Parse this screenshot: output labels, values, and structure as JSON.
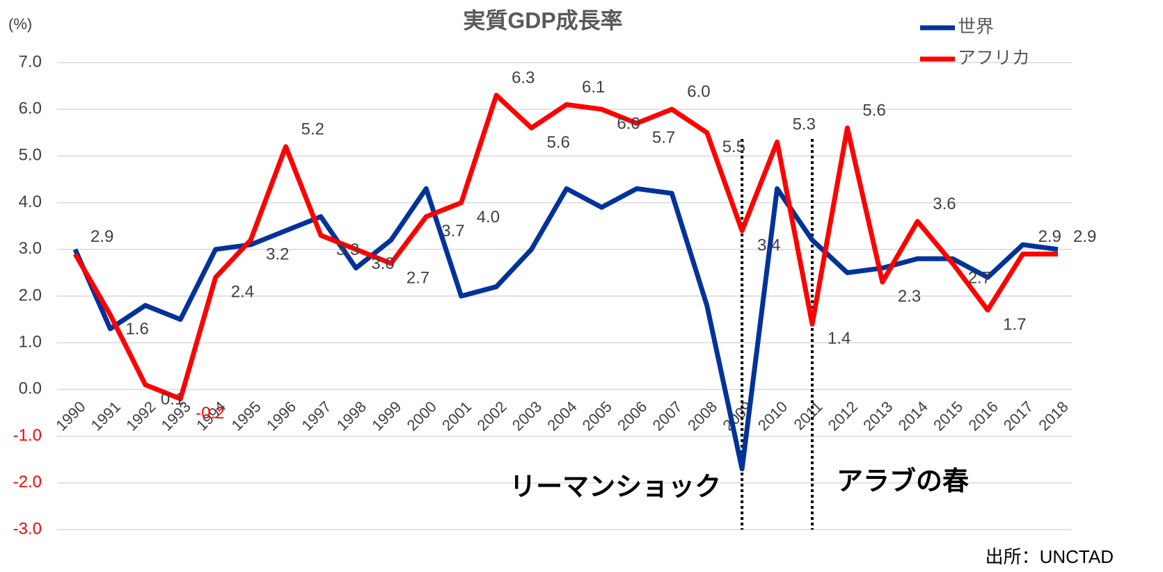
{
  "chart_data": {
    "type": "line",
    "title": "実質GDP成長率",
    "y_label": "(%)",
    "source": "出所：UNCTAD",
    "categories": [
      "1990",
      "1991",
      "1992",
      "1993",
      "1994",
      "1995",
      "1996",
      "1997",
      "1998",
      "1999",
      "2000",
      "2001",
      "2002",
      "2003",
      "2004",
      "2005",
      "2006",
      "2007",
      "2008",
      "2009",
      "2010",
      "2011",
      "2012",
      "2013",
      "2014",
      "2015",
      "2016",
      "2017",
      "2018"
    ],
    "series": [
      {
        "name": "世界",
        "color": "#003399",
        "values": [
          3.0,
          1.3,
          1.8,
          1.5,
          3.0,
          3.1,
          3.4,
          3.7,
          2.6,
          3.2,
          4.3,
          2.0,
          2.2,
          3.0,
          4.3,
          3.9,
          4.3,
          4.2,
          1.8,
          -1.7,
          4.3,
          3.2,
          2.5,
          2.6,
          2.8,
          2.8,
          2.4,
          3.1,
          3.0
        ]
      },
      {
        "name": "アフリカ",
        "color": "#ff0000",
        "values": [
          2.9,
          1.6,
          0.1,
          -0.2,
          2.4,
          3.2,
          5.2,
          3.3,
          3.0,
          2.7,
          3.7,
          4.0,
          6.3,
          5.6,
          6.1,
          6.0,
          5.7,
          6.0,
          5.5,
          3.4,
          5.3,
          1.4,
          5.6,
          2.3,
          3.6,
          2.7,
          1.7,
          2.9,
          2.9
        ],
        "value_labels": [
          "2.9",
          "1.6",
          "0.1",
          "-0.2",
          "2.4",
          "3.2",
          "5.2",
          "3.3",
          "3.0",
          "2.7",
          "3.7",
          "4.0",
          "6.3",
          "5.6",
          "6.1",
          "6.0",
          "5.7",
          "6.0",
          "5.5",
          "3.4",
          "5.3",
          "1.4",
          "5.6",
          "2.3",
          "3.6",
          "2.7",
          "1.7",
          "2.9",
          "2.9"
        ]
      }
    ],
    "ylim": [
      -3.0,
      7.0
    ],
    "yticks": [
      {
        "value": -3,
        "label": "-3.0"
      },
      {
        "value": -2,
        "label": "-2.0"
      },
      {
        "value": -1,
        "label": "-1.0"
      },
      {
        "value": 0,
        "label": "0.0"
      },
      {
        "value": 1,
        "label": "1.0"
      },
      {
        "value": 2,
        "label": "2.0"
      },
      {
        "value": 3,
        "label": "3.0"
      },
      {
        "value": 4,
        "label": "4.0"
      },
      {
        "value": 5,
        "label": "5.0"
      },
      {
        "value": 6,
        "label": "6.0"
      },
      {
        "value": 7,
        "label": "7.0"
      }
    ],
    "grid": true,
    "negative_color": "#ff0000",
    "legend": "top-right",
    "annotations": [
      {
        "category": "2009",
        "text": "リーマンショック"
      },
      {
        "category": "2011",
        "text": "アラブの春"
      }
    ]
  }
}
